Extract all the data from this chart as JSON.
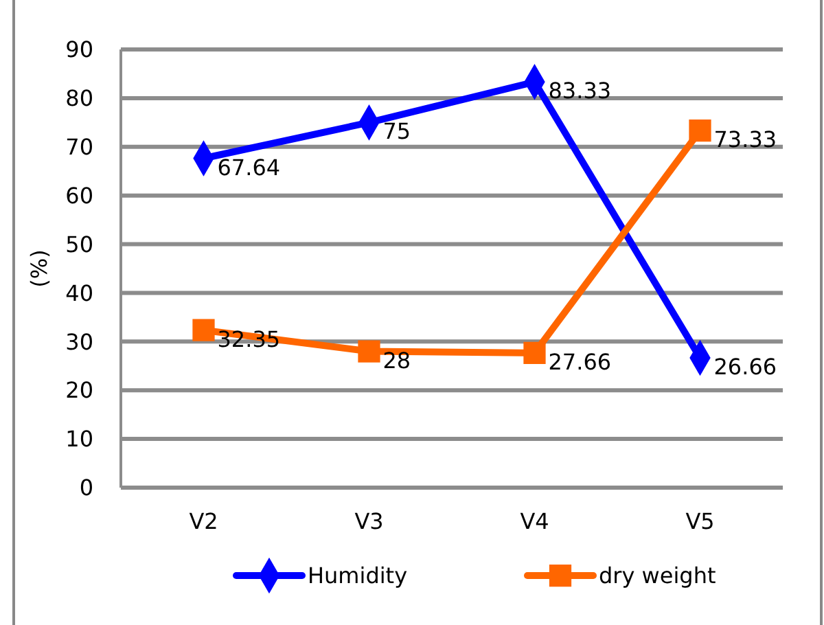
{
  "chart_data": {
    "type": "line",
    "ylabel": "(%)",
    "categories": [
      "V2",
      "V3",
      "V4",
      "V5"
    ],
    "series": [
      {
        "name": "Humidity",
        "color": "#0000ff",
        "marker": "diamond",
        "values": [
          67.64,
          75,
          83.33,
          26.66
        ]
      },
      {
        "name": "dry weight",
        "color": "#ff6600",
        "marker": "square",
        "values": [
          32.35,
          28,
          27.66,
          73.33
        ]
      }
    ],
    "ylim": [
      0,
      90
    ],
    "yticks": [
      0,
      10,
      20,
      30,
      40,
      50,
      60,
      70,
      80,
      90
    ],
    "grid": "y",
    "legend": "bottom",
    "data_labels": true
  }
}
